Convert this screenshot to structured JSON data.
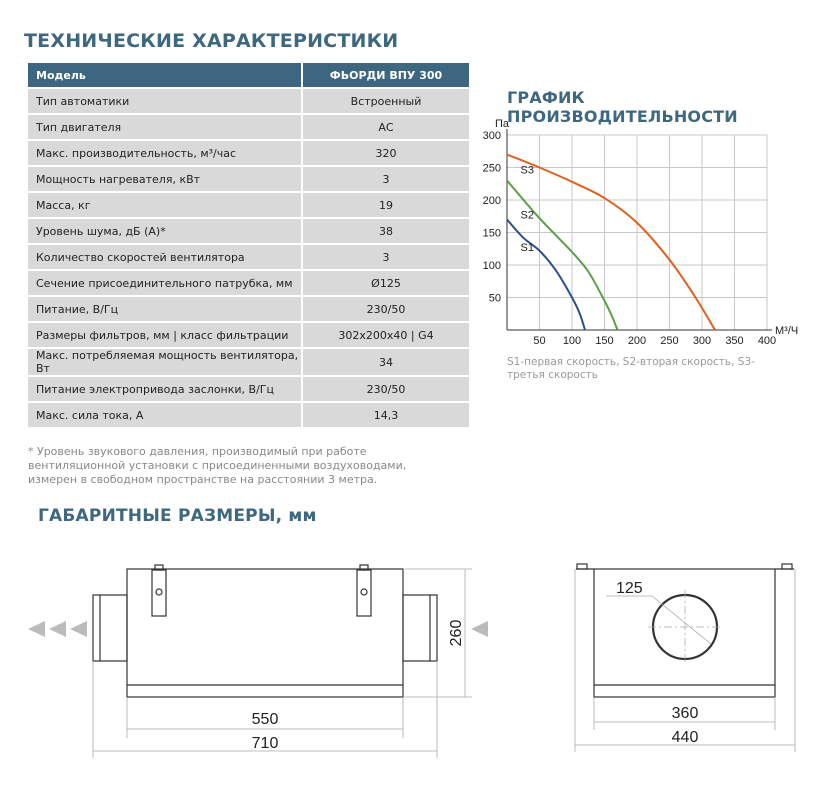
{
  "specs": {
    "title": "ТЕХНИЧЕСКИЕ ХАРАКТЕРИСТИКИ",
    "header": {
      "label": "Модель",
      "value": "ФЬОРДИ ВПУ 300"
    },
    "rows": [
      {
        "label": "Тип автоматики",
        "value": "Встроенный"
      },
      {
        "label": "Тип двигателя",
        "value": "АС"
      },
      {
        "label": "Макс. производительность, м³/час",
        "value": "320"
      },
      {
        "label": "Мощность нагревателя, кВт",
        "value": "3"
      },
      {
        "label": "Масса, кг",
        "value": "19"
      },
      {
        "label": "Уровень шума, дБ (А)*",
        "value": "38"
      },
      {
        "label": "Количество скоростей вентилятора",
        "value": "3"
      },
      {
        "label": "Сечение присоединительного патрубка, мм",
        "value": "Ø125"
      },
      {
        "label": "Питание, В/Гц",
        "value": "230/50"
      },
      {
        "label": "Размеры фильтров, мм  |  класс фильтрации",
        "value": "302x200x40  |  G4"
      },
      {
        "label": "Макс.  потребляемая мощность вентилятора, Вт",
        "value": "34"
      },
      {
        "label": "Питание электропривода заслонки, В/Гц",
        "value": "230/50"
      },
      {
        "label": "Макс. сила тока, А",
        "value": "14,3"
      }
    ],
    "footnote": "* Уровень звукового давления, производимый при работе вентиляционной установки с присоединенными воздуховодами, измерен в свободном пространстве на расстоянии 3 метра."
  },
  "chart_data": {
    "type": "line",
    "title": "ГРАФИК ПРОИЗВОДИТЕЛЬНОСТИ",
    "xlabel": "М³/Ч",
    "ylabel": "Па",
    "xlim": [
      0,
      400
    ],
    "ylim": [
      0,
      300
    ],
    "xticks": [
      50,
      100,
      150,
      200,
      250,
      300,
      350,
      400
    ],
    "yticks": [
      50,
      100,
      150,
      200,
      250,
      300
    ],
    "grid": true,
    "series": [
      {
        "name": "S1",
        "color": "#2b4f8c",
        "x": [
          0,
          25,
          50,
          75,
          100,
          112,
          120
        ],
        "y": [
          170,
          142,
          122,
          92,
          50,
          25,
          0
        ]
      },
      {
        "name": "S2",
        "color": "#5a9e45",
        "x": [
          0,
          50,
          100,
          125,
          150,
          162,
          170
        ],
        "y": [
          230,
          172,
          120,
          90,
          45,
          20,
          0
        ]
      },
      {
        "name": "S3",
        "color": "#e0601e",
        "x": [
          0,
          50,
          100,
          150,
          200,
          250,
          290,
          320
        ],
        "y": [
          270,
          250,
          228,
          203,
          165,
          108,
          50,
          0
        ]
      }
    ],
    "legend_note": "S1-первая скорость, S2-вторая скорость, S3-третья скорость"
  },
  "dimensions": {
    "title": "ГАБАРИТНЫЕ РАЗМЕРЫ, мм",
    "front": {
      "inner_width": "550",
      "total_width": "710",
      "height": "260"
    },
    "side": {
      "diameter": "125",
      "inner_width": "360",
      "total_width": "440"
    }
  }
}
